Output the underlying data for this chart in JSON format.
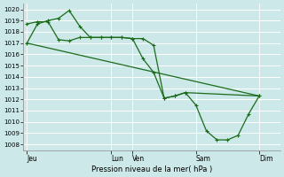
{
  "bg_color": "#cce8e8",
  "grid_color": "#ffffff",
  "line_color": "#1a6b1a",
  "xlabel": "Pression niveau de la mer( hPa )",
  "ylim": [
    1007.5,
    1020.5
  ],
  "yticks": [
    1008,
    1009,
    1010,
    1011,
    1012,
    1013,
    1014,
    1015,
    1016,
    1017,
    1018,
    1019,
    1020
  ],
  "xtick_labels": [
    "Jeu",
    "Lun",
    "Ven",
    "Sam",
    "Dim"
  ],
  "xtick_positions": [
    0,
    48,
    60,
    96,
    132
  ],
  "vline_positions": [
    0,
    48,
    60,
    96,
    132
  ],
  "xlim": [
    -2,
    144
  ],
  "series1_x": [
    0,
    6,
    12,
    18,
    24,
    30,
    36,
    42,
    48,
    54,
    60,
    66,
    72,
    78,
    84,
    90,
    96,
    102,
    108,
    114,
    120,
    126,
    132
  ],
  "series1_y": [
    1017.0,
    1018.7,
    1019.0,
    1019.2,
    1019.9,
    1018.5,
    1017.5,
    1017.5,
    1017.5,
    1017.5,
    1017.4,
    1015.6,
    1014.4,
    1012.1,
    1012.3,
    1012.6,
    1011.5,
    1009.2,
    1008.4,
    1008.4,
    1008.8,
    1010.7,
    1012.3
  ],
  "series2_x": [
    0,
    6,
    12,
    18,
    24,
    30,
    36,
    42,
    48,
    54,
    60,
    66,
    72,
    78,
    84,
    90,
    132
  ],
  "series2_y": [
    1018.7,
    1018.9,
    1018.9,
    1017.3,
    1017.2,
    1017.5,
    1017.5,
    1017.5,
    1017.5,
    1017.5,
    1017.4,
    1017.4,
    1016.8,
    1012.1,
    1012.3,
    1012.6,
    1012.3
  ],
  "series3_x": [
    0,
    132
  ],
  "series3_y": [
    1017.0,
    1012.3
  ]
}
